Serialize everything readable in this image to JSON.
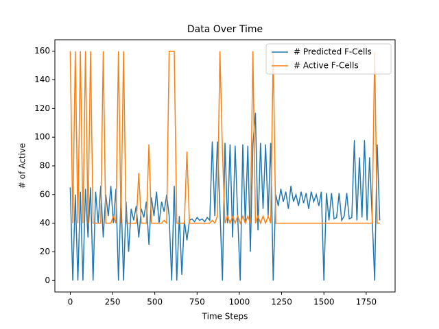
{
  "chart_data": {
    "type": "line",
    "title": "Data Over Time",
    "x_label": "Time Steps",
    "y_label": "# of Active",
    "x": [
      0,
      15,
      30,
      45,
      60,
      75,
      90,
      105,
      120,
      135,
      150,
      165,
      180,
      195,
      210,
      225,
      240,
      255,
      270,
      285,
      300,
      315,
      330,
      345,
      360,
      375,
      390,
      405,
      420,
      435,
      450,
      465,
      480,
      495,
      510,
      525,
      540,
      555,
      570,
      585,
      600,
      615,
      630,
      645,
      660,
      675,
      690,
      705,
      720,
      735,
      750,
      765,
      780,
      795,
      810,
      825,
      840,
      855,
      870,
      885,
      900,
      915,
      930,
      945,
      960,
      975,
      990,
      1005,
      1020,
      1035,
      1050,
      1065,
      1080,
      1095,
      1110,
      1125,
      1140,
      1155,
      1170,
      1185,
      1200,
      1215,
      1230,
      1245,
      1260,
      1275,
      1290,
      1305,
      1320,
      1335,
      1350,
      1365,
      1380,
      1395,
      1410,
      1425,
      1440,
      1455,
      1470,
      1485,
      1500,
      1515,
      1530,
      1545,
      1560,
      1575,
      1590,
      1605,
      1620,
      1635,
      1650,
      1665,
      1680,
      1695,
      1710,
      1725,
      1740,
      1755,
      1770,
      1785,
      1800,
      1815,
      1830
    ],
    "series": [
      {
        "name": "# Predicted F-Cells",
        "color": "#1f77b4",
        "values": [
          65,
          0,
          60,
          0,
          62,
          0,
          64,
          30,
          65,
          0,
          62,
          40,
          66,
          30,
          60,
          45,
          66,
          40,
          64,
          0,
          60,
          0,
          55,
          20,
          50,
          42,
          52,
          30,
          50,
          44,
          55,
          25,
          58,
          45,
          62,
          40,
          55,
          48,
          60,
          45,
          0,
          66,
          0,
          45,
          4,
          42,
          28,
          42,
          43,
          41,
          44,
          42,
          43,
          41,
          44,
          42,
          97,
          45,
          97,
          50,
          0,
          96,
          40,
          95,
          30,
          94,
          45,
          0,
          95,
          40,
          94,
          20,
          95,
          117,
          35,
          96,
          50,
          95,
          45,
          96,
          0,
          60,
          52,
          64,
          55,
          62,
          50,
          66,
          55,
          60,
          52,
          62,
          54,
          61,
          50,
          62,
          55,
          60,
          52,
          62,
          0,
          61,
          42,
          61,
          43,
          44,
          61,
          42,
          45,
          61,
          43,
          44,
          98,
          42,
          86,
          44,
          98,
          42,
          86,
          45,
          0,
          95,
          42
        ]
      },
      {
        "name": "# Active F-Cells",
        "color": "#ff7f0e",
        "values": [
          160,
          40,
          160,
          40,
          160,
          40,
          160,
          40,
          160,
          40,
          40,
          40,
          40,
          160,
          40,
          40,
          40,
          45,
          40,
          160,
          40,
          160,
          40,
          40,
          40,
          40,
          40,
          75,
          40,
          40,
          40,
          95,
          40,
          40,
          40,
          40,
          40,
          42,
          40,
          160,
          160,
          160,
          40,
          40,
          40,
          40,
          90,
          40,
          40,
          40,
          40,
          40,
          40,
          40,
          40,
          40,
          42,
          40,
          45,
          160,
          90,
          40,
          45,
          40,
          45,
          40,
          45,
          40,
          45,
          40,
          45,
          40,
          160,
          40,
          45,
          40,
          45,
          40,
          45,
          40,
          160,
          40,
          40,
          40,
          40,
          40,
          40,
          40,
          40,
          40,
          40,
          40,
          40,
          40,
          40,
          40,
          40,
          40,
          40,
          40,
          40,
          40,
          40,
          40,
          40,
          40,
          40,
          40,
          40,
          40,
          40,
          40,
          40,
          40,
          40,
          40,
          40,
          40,
          40,
          40,
          160,
          40,
          40
        ]
      }
    ],
    "xlim": [
      -91,
      1921
    ],
    "ylim": [
      -8,
      168
    ],
    "xticks": [
      0,
      250,
      500,
      750,
      1000,
      1250,
      1500,
      1750
    ],
    "yticks": [
      0,
      20,
      40,
      60,
      80,
      100,
      120,
      140,
      160
    ],
    "legend": "upper right"
  }
}
